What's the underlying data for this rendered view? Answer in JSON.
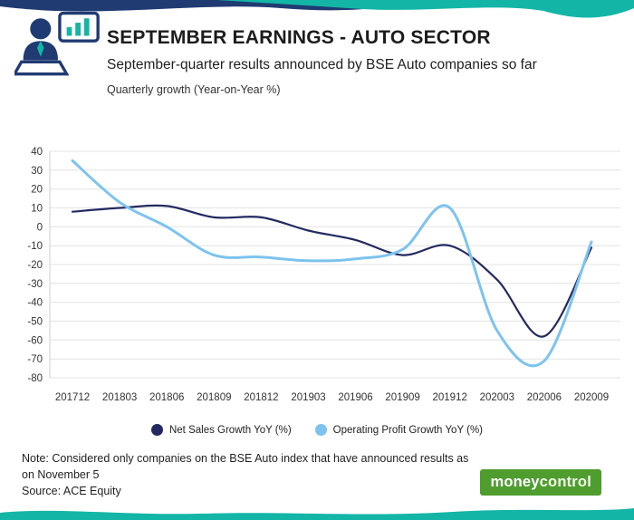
{
  "header": {
    "title": "SEPTEMBER EARNINGS - AUTO SECTOR",
    "subtitle": "September-quarter results announced by BSE Auto companies so far",
    "axis_note": "Quarterly growth (Year-on-Year %)"
  },
  "chart_data": {
    "type": "line",
    "categories": [
      "201712",
      "201803",
      "201806",
      "201809",
      "201812",
      "201903",
      "201906",
      "201909",
      "201912",
      "202003",
      "202006",
      "202009"
    ],
    "series": [
      {
        "name": "Net Sales Growth YoY (%)",
        "color": "#232a60",
        "width": 2.2,
        "values": [
          8,
          10,
          11,
          5,
          5,
          -2,
          -7,
          -15,
          -10,
          -28,
          -58,
          -11
        ]
      },
      {
        "name": "Operating Profit Growth YoY (%)",
        "color": "#7cc4ef",
        "width": 3,
        "values": [
          35,
          13,
          0,
          -15,
          -16,
          -18,
          -17,
          -12,
          10,
          -55,
          -71,
          -8
        ]
      }
    ],
    "ylim": [
      -80,
      40
    ],
    "ytick_step": 10,
    "grid": true,
    "legend_position": "bottom",
    "smooth": true
  },
  "footer": {
    "note_line1": "Note: Considered only companies on the BSE Auto index that have announced results as",
    "note_line2": "on November 5",
    "source": "Source: ACE Equity",
    "logo_money": "money",
    "logo_control": "control"
  },
  "colors": {
    "navy": "#232a60",
    "light_blue": "#7cc4ef",
    "teal": "#12b5a6",
    "dark_ribbon": "#203a72",
    "logo_green": "#4f9d2f",
    "gridline": "#e4e4e4"
  }
}
